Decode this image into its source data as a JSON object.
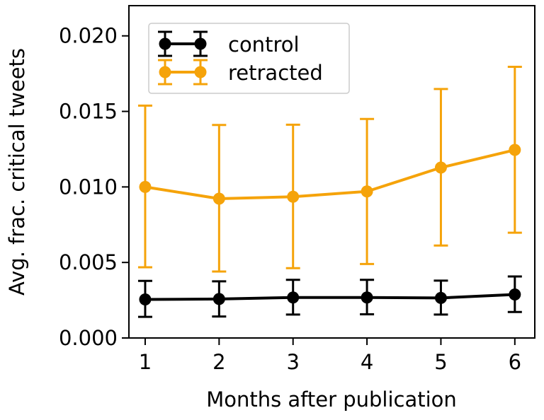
{
  "chart_data": {
    "type": "line",
    "title": "",
    "xlabel": "Months after publication",
    "ylabel": "Avg. frac. critical tweets",
    "x": [
      1,
      2,
      3,
      4,
      5,
      6
    ],
    "xlim": [
      0.78,
      6.27
    ],
    "ylim": [
      0.0,
      0.022
    ],
    "xticks": [
      "1",
      "2",
      "3",
      "4",
      "5",
      "6"
    ],
    "yticks": [
      "0.000",
      "0.005",
      "0.010",
      "0.015",
      "0.020"
    ],
    "grid": false,
    "legend_position": "top-left",
    "series": [
      {
        "name": "control",
        "color": "#000000",
        "values": [
          0.00255,
          0.00258,
          0.00268,
          0.00268,
          0.00265,
          0.00288
        ],
        "error_low": [
          0.0014,
          0.00142,
          0.00155,
          0.00157,
          0.00155,
          0.00172
        ],
        "error_high": [
          0.00378,
          0.00375,
          0.00385,
          0.00385,
          0.0038,
          0.00407
        ]
      },
      {
        "name": "retracted",
        "color": "#f5a30a",
        "values": [
          0.01,
          0.00922,
          0.00935,
          0.0097,
          0.01128,
          0.01245
        ],
        "error_low": [
          0.00468,
          0.0044,
          0.00462,
          0.0049,
          0.00612,
          0.00697
        ],
        "error_high": [
          0.01538,
          0.0141,
          0.01412,
          0.0145,
          0.01648,
          0.01795
        ]
      }
    ]
  }
}
